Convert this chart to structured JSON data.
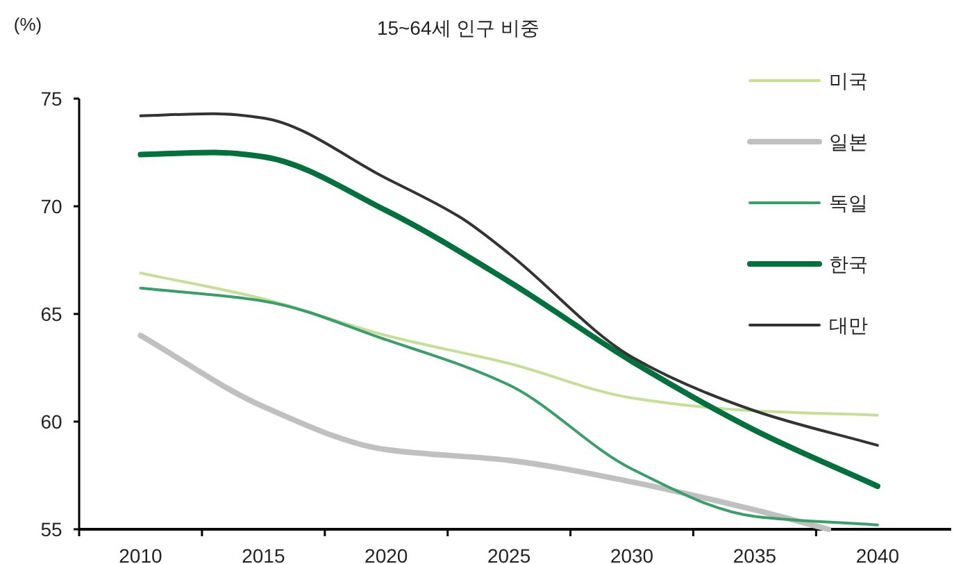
{
  "chart_data": {
    "type": "line",
    "title": "15~64세 인구 비중",
    "ylabel": "(%)",
    "xlim": [
      2007.5,
      2043
    ],
    "xticks": [
      2010,
      2015,
      2020,
      2025,
      2030,
      2035,
      2040,
      {
        "value": 2007.5,
        "label": null
      },
      {
        "value": 2012.5,
        "label": null
      },
      {
        "value": 2017.5,
        "label": null
      },
      {
        "value": 2022.5,
        "label": null
      },
      {
        "value": 2027.5,
        "label": null
      },
      {
        "value": 2032.5,
        "label": null
      },
      {
        "value": 2037.5,
        "label": null
      }
    ],
    "ylim": [
      55,
      75
    ],
    "yticks": [
      55,
      60,
      65,
      70,
      75
    ],
    "grid": false,
    "legend": "top right",
    "marker": "none",
    "line_style": "solid",
    "series": [
      {
        "name": "미국",
        "color": "#c5df96",
        "x": [
          2010,
          2015,
          2020,
          2025,
          2030,
          2035,
          2040
        ],
        "values": [
          66.9,
          65.7,
          64.0,
          62.7,
          61.1,
          60.5,
          60.3
        ]
      },
      {
        "name": "일본",
        "color": "#c0c0c0",
        "x": [
          2010,
          2015,
          2020,
          2025,
          2030,
          2035,
          2038
        ],
        "values": [
          64.0,
          60.7,
          58.7,
          58.2,
          57.2,
          55.9,
          55.0
        ]
      },
      {
        "name": "독일",
        "color": "#3a9e6a",
        "x": [
          2010,
          2015,
          2020,
          2025,
          2030,
          2035,
          2040
        ],
        "values": [
          66.2,
          65.6,
          63.8,
          61.7,
          57.8,
          55.6,
          55.2
        ]
      },
      {
        "name": "한국",
        "color": "#00703c",
        "x": [
          2010,
          2013,
          2015,
          2020,
          2025,
          2030,
          2035,
          2040
        ],
        "values": [
          72.4,
          72.5,
          72.3,
          69.8,
          66.5,
          62.8,
          59.6,
          57.0
        ]
      },
      {
        "name": "대만",
        "color": "#333333",
        "x": [
          2010,
          2013,
          2015,
          2020,
          2023,
          2025,
          2030,
          2035,
          2040
        ],
        "values": [
          74.2,
          74.3,
          74.1,
          71.3,
          69.5,
          67.8,
          63.0,
          60.5,
          58.9
        ]
      }
    ]
  }
}
